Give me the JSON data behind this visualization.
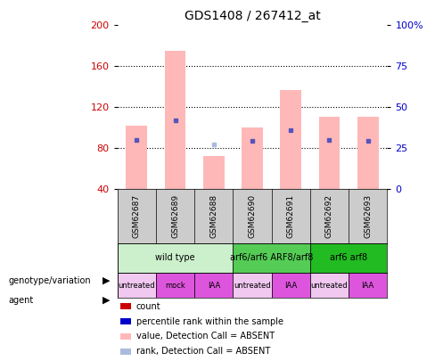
{
  "title": "GDS1408 / 267412_at",
  "samples": [
    "GSM62687",
    "GSM62689",
    "GSM62688",
    "GSM62690",
    "GSM62691",
    "GSM62692",
    "GSM62693"
  ],
  "bar_bottom": 40,
  "ylim": [
    40,
    200
  ],
  "yticks_left": [
    40,
    80,
    120,
    160,
    200
  ],
  "yticks_right": [
    0,
    25,
    50,
    75,
    100
  ],
  "pink_bar_top": [
    102,
    175,
    72,
    100,
    137,
    110,
    110
  ],
  "blue_dot_y": [
    88,
    107,
    null,
    87,
    97,
    88,
    87
  ],
  "light_blue_y": [
    null,
    null,
    83,
    null,
    null,
    null,
    null
  ],
  "genotype_groups": [
    {
      "label": "wild type",
      "start": 0,
      "end": 3,
      "color": "#ccf0cc"
    },
    {
      "label": "arf6/arf6 ARF8/arf8",
      "start": 3,
      "end": 5,
      "color": "#55cc55"
    },
    {
      "label": "arf6 arf8",
      "start": 5,
      "end": 7,
      "color": "#22bb22"
    }
  ],
  "agent_labels": [
    "untreated",
    "mock",
    "IAA",
    "untreated",
    "IAA",
    "untreated",
    "IAA"
  ],
  "agent_colors": [
    "#f0c8f0",
    "#dd55dd",
    "#dd55dd",
    "#f0c8f0",
    "#dd55dd",
    "#f0c8f0",
    "#dd55dd"
  ],
  "pink_color": "#ffb8b8",
  "blue_dot_color": "#5555bb",
  "light_blue_color": "#aabbdd",
  "left_axis_color": "#cc0000",
  "right_axis_color": "#0000cc",
  "legend_items": [
    {
      "label": "count",
      "color": "#cc0000"
    },
    {
      "label": "percentile rank within the sample",
      "color": "#0000cc"
    },
    {
      "label": "value, Detection Call = ABSENT",
      "color": "#ffb8b8"
    },
    {
      "label": "rank, Detection Call = ABSENT",
      "color": "#aabbdd"
    }
  ],
  "fig_width": 4.88,
  "fig_height": 4.05,
  "dpi": 100
}
